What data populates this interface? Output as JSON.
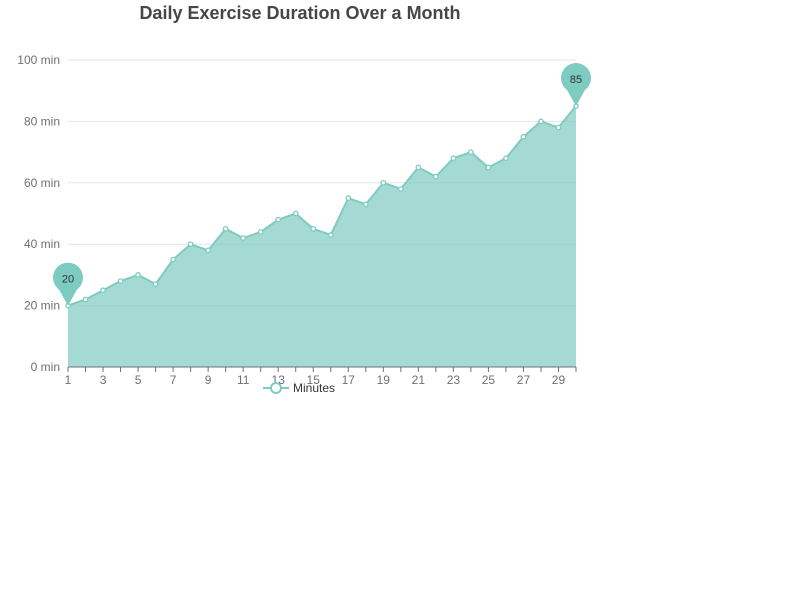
{
  "chart_data": {
    "type": "area",
    "title": "Daily Exercise Duration Over a Month",
    "x": [
      1,
      2,
      3,
      4,
      5,
      6,
      7,
      8,
      9,
      10,
      11,
      12,
      13,
      14,
      15,
      16,
      17,
      18,
      19,
      20,
      21,
      22,
      23,
      24,
      25,
      26,
      27,
      28,
      29,
      30
    ],
    "x_tick_labels": [
      "1",
      "3",
      "5",
      "7",
      "9",
      "11",
      "13",
      "15",
      "17",
      "19",
      "21",
      "23",
      "25",
      "27",
      "29"
    ],
    "series": [
      {
        "name": "Minutes",
        "color": "#7ecbc1",
        "values": [
          20,
          22,
          25,
          28,
          30,
          27,
          35,
          40,
          38,
          45,
          42,
          44,
          48,
          50,
          45,
          43,
          55,
          53,
          60,
          58,
          65,
          62,
          68,
          70,
          65,
          68,
          75,
          80,
          78,
          85
        ]
      }
    ],
    "ylim": [
      0,
      100
    ],
    "y_ticks": [
      0,
      20,
      40,
      60,
      80,
      100
    ],
    "y_unit_suffix": " min",
    "grid": true,
    "legend_position": "bottom-center",
    "markers": {
      "min": "20",
      "max": "85"
    }
  }
}
